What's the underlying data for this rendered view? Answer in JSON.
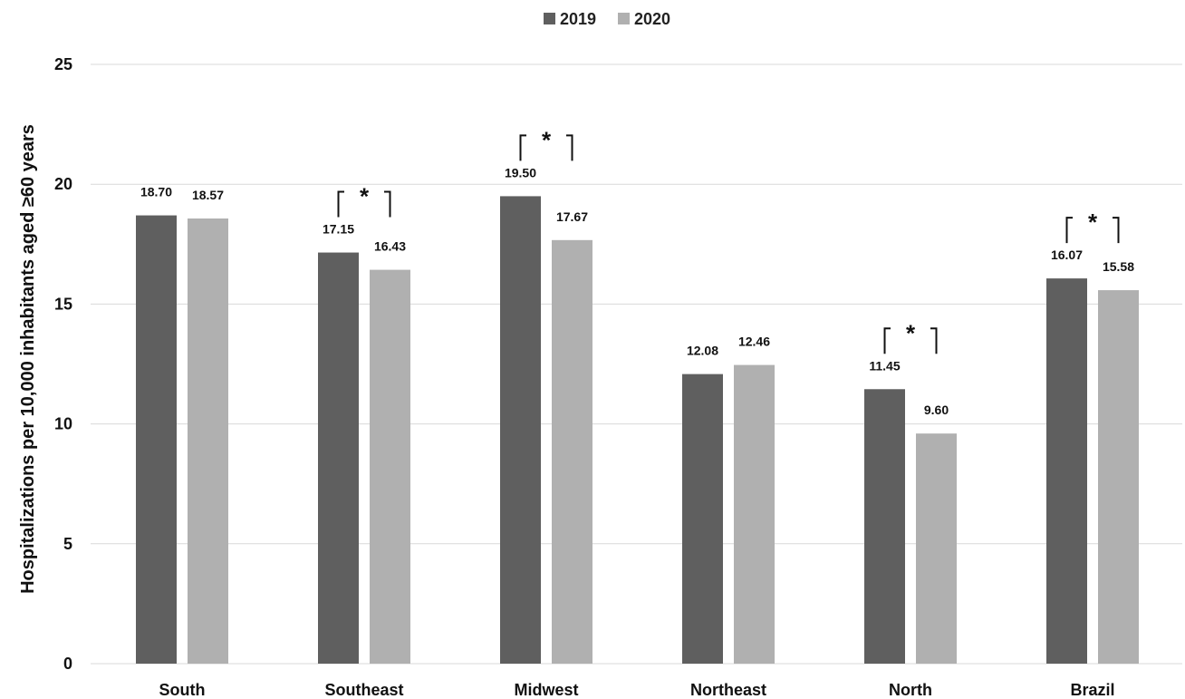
{
  "chart_data": {
    "type": "bar",
    "title": "",
    "xlabel": "",
    "ylabel": "Hospitalizations per 10,000 inhabitants aged ≥60 years",
    "ylim": [
      0,
      25
    ],
    "yticks": [
      0,
      5,
      10,
      15,
      20,
      25
    ],
    "grid": true,
    "legend_position": "top-center",
    "categories": [
      "South",
      "Southeast",
      "Midwest",
      "Northeast",
      "North",
      "Brazil"
    ],
    "series": [
      {
        "name": "2019",
        "color": "#5f5f5f",
        "values": [
          18.7,
          17.15,
          19.5,
          12.08,
          11.45,
          16.07
        ],
        "labels": [
          "18.70",
          "17.15",
          "19.50",
          "12.08",
          "11.45",
          "16.07"
        ]
      },
      {
        "name": "2020",
        "color": "#b0b0b0",
        "values": [
          18.57,
          16.43,
          17.67,
          12.46,
          9.6,
          15.58
        ],
        "labels": [
          "18.57",
          "16.43",
          "17.67",
          "12.46",
          "9.60",
          "15.58"
        ]
      }
    ],
    "significance": {
      "symbol": "*",
      "categories": [
        "Southeast",
        "Midwest",
        "North",
        "Brazil"
      ]
    }
  }
}
